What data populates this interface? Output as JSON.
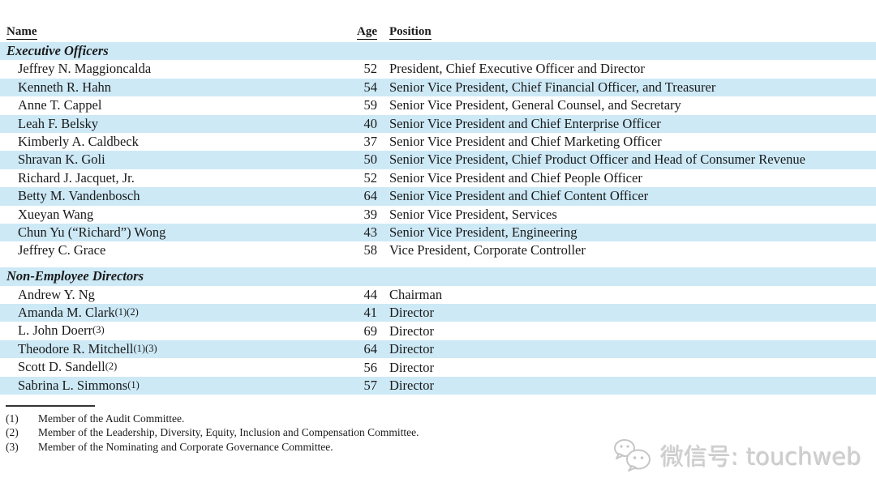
{
  "table": {
    "columns": {
      "name": "Name",
      "age": "Age",
      "position": "Position"
    },
    "rows": [
      {
        "type": "section",
        "label": "Executive Officers",
        "shade": "blue"
      },
      {
        "type": "row",
        "name": "Jeffrey N. Maggioncalda",
        "marker": "",
        "age": "52",
        "position": "President, Chief Executive Officer and Director",
        "shade": "white"
      },
      {
        "type": "row",
        "name": "Kenneth R. Hahn",
        "marker": "",
        "age": "54",
        "position": "Senior Vice President, Chief Financial Officer, and Treasurer",
        "shade": "blue"
      },
      {
        "type": "row",
        "name": "Anne T. Cappel",
        "marker": "",
        "age": "59",
        "position": "Senior Vice President, General Counsel, and Secretary",
        "shade": "white"
      },
      {
        "type": "row",
        "name": "Leah F. Belsky",
        "marker": "",
        "age": "40",
        "position": "Senior Vice President and Chief Enterprise Officer",
        "shade": "blue"
      },
      {
        "type": "row",
        "name": "Kimberly A. Caldbeck",
        "marker": "",
        "age": "37",
        "position": "Senior Vice President and Chief Marketing Officer",
        "shade": "white"
      },
      {
        "type": "row",
        "name": "Shravan K. Goli",
        "marker": "",
        "age": "50",
        "position": "Senior Vice President, Chief Product Officer and Head of Consumer Revenue",
        "shade": "blue"
      },
      {
        "type": "row",
        "name": "Richard J. Jacquet, Jr.",
        "marker": "",
        "age": "52",
        "position": "Senior Vice President and Chief People Officer",
        "shade": "white"
      },
      {
        "type": "row",
        "name": "Betty M. Vandenbosch",
        "marker": "",
        "age": "64",
        "position": "Senior Vice President and Chief Content Officer",
        "shade": "blue"
      },
      {
        "type": "row",
        "name": "Xueyan Wang",
        "marker": "",
        "age": "39",
        "position": "Senior Vice President, Services",
        "shade": "white"
      },
      {
        "type": "row",
        "name": "Chun Yu (“Richard”) Wong",
        "marker": "",
        "age": "43",
        "position": "Senior Vice President, Engineering",
        "shade": "blue"
      },
      {
        "type": "row",
        "name": "Jeffrey C. Grace",
        "marker": "",
        "age": "58",
        "position": "Vice President, Corporate Controller",
        "shade": "white"
      },
      {
        "type": "gap"
      },
      {
        "type": "section",
        "label": "Non-Employee Directors",
        "shade": "blue"
      },
      {
        "type": "row",
        "name": "Andrew Y. Ng",
        "marker": "",
        "age": "44",
        "position": "Chairman",
        "shade": "white"
      },
      {
        "type": "row",
        "name": "Amanda M. Clark",
        "marker": "(1)(2)",
        "age": "41",
        "position": "Director",
        "shade": "blue"
      },
      {
        "type": "row",
        "name": "L. John Doerr",
        "marker": "(3)",
        "age": "69",
        "position": "Director",
        "shade": "white"
      },
      {
        "type": "row",
        "name": "Theodore R. Mitchell",
        "marker": "(1)(3)",
        "age": "64",
        "position": "Director",
        "shade": "blue"
      },
      {
        "type": "row",
        "name": "Scott D. Sandell",
        "marker": "(2)",
        "age": "56",
        "position": "Director",
        "shade": "white"
      },
      {
        "type": "row",
        "name": "Sabrina L. Simmons",
        "marker": "(1)",
        "age": "57",
        "position": "Director",
        "shade": "blue"
      }
    ]
  },
  "footnotes": [
    {
      "marker": "(1)",
      "text": "Member of the Audit Committee."
    },
    {
      "marker": "(2)",
      "text": "Member of the Leadership, Diversity, Equity, Inclusion and Compensation Committee."
    },
    {
      "marker": "(3)",
      "text": "Member of the Nominating and Corporate Governance Committee."
    }
  ],
  "watermark": {
    "icon": "wechat-icon",
    "text": "微信号: touchweb"
  },
  "colors": {
    "stripe": "#cde9f6",
    "text": "#1a1a1a",
    "rule": "#000000",
    "watermark": "#cdcdcd"
  }
}
